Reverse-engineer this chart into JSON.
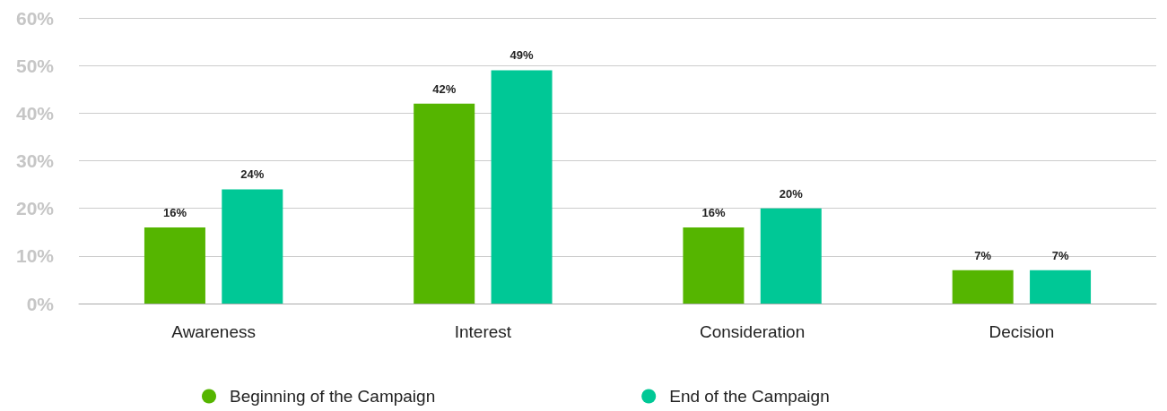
{
  "chart_data": {
    "type": "bar",
    "categories": [
      "Awareness",
      "Interest",
      "Consideration",
      "Decision"
    ],
    "series": [
      {
        "name": "Beginning of the Campaign",
        "color": "#55b500",
        "values": [
          16,
          42,
          16,
          7
        ],
        "value_labels": [
          "16%",
          "42%",
          "16%",
          "7%"
        ]
      },
      {
        "name": "End of the Campaign",
        "color": "#00c896",
        "values": [
          24,
          49,
          20,
          7
        ],
        "value_labels": [
          "24%",
          "49%",
          "20%",
          "7%"
        ]
      }
    ],
    "ylim": [
      0,
      60
    ],
    "yticks": [
      {
        "value": 0,
        "label": "0%"
      },
      {
        "value": 10,
        "label": "10%"
      },
      {
        "value": 20,
        "label": "20%"
      },
      {
        "value": 30,
        "label": "30%"
      },
      {
        "value": 40,
        "label": "40%"
      },
      {
        "value": 50,
        "label": "50%"
      },
      {
        "value": 60,
        "label": "60%"
      }
    ],
    "grid": "y",
    "legend": "bottom"
  }
}
